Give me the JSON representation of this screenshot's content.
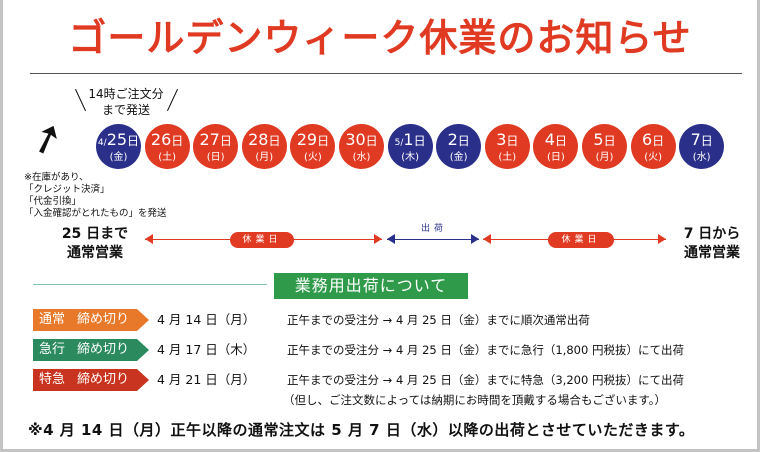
{
  "title": "ゴールデンウィーク休業のお知らせ",
  "note14": {
    "line1": "14時ご注文分",
    "line2": "まで発送"
  },
  "days": [
    {
      "month": "4/",
      "day": "25",
      "unit": "日",
      "weekday": "(金)",
      "type": "ship"
    },
    {
      "month": "",
      "day": "26",
      "unit": "日",
      "weekday": "(土)",
      "type": "holiday"
    },
    {
      "month": "",
      "day": "27",
      "unit": "日",
      "weekday": "(日)",
      "type": "holiday"
    },
    {
      "month": "",
      "day": "28",
      "unit": "日",
      "weekday": "(月)",
      "type": "holiday"
    },
    {
      "month": "",
      "day": "29",
      "unit": "日",
      "weekday": "(火)",
      "type": "holiday"
    },
    {
      "month": "",
      "day": "30",
      "unit": "日",
      "weekday": "(水)",
      "type": "holiday"
    },
    {
      "month": "5/",
      "day": "1",
      "unit": "日",
      "weekday": "(木)",
      "type": "ship"
    },
    {
      "month": "",
      "day": "2",
      "unit": "日",
      "weekday": "(金)",
      "type": "ship"
    },
    {
      "month": "",
      "day": "3",
      "unit": "日",
      "weekday": "(土)",
      "type": "holiday"
    },
    {
      "month": "",
      "day": "4",
      "unit": "日",
      "weekday": "(日)",
      "type": "holiday"
    },
    {
      "month": "",
      "day": "5",
      "unit": "日",
      "weekday": "(月)",
      "type": "holiday"
    },
    {
      "month": "",
      "day": "6",
      "unit": "日",
      "weekday": "(火)",
      "type": "holiday"
    },
    {
      "month": "",
      "day": "7",
      "unit": "日",
      "weekday": "(水)",
      "type": "ship"
    }
  ],
  "stock_note": [
    "※在庫があり、",
    "「クレジット決済」",
    "「代金引換」",
    "「入金確認がとれたもの」を発送"
  ],
  "left_side": {
    "line1": "25 日まで",
    "line2": "通常営業"
  },
  "right_side": {
    "line1": "7 日から",
    "line2": "通常営業"
  },
  "lanes": {
    "holiday1": "休業日",
    "ship": "出荷",
    "holiday2": "休業日"
  },
  "section_title": "業務用出荷について",
  "rows": [
    {
      "kind": "通常",
      "label": "締め切り",
      "date": "4 月 14 日（月）",
      "desc": "正午までの受注分 → 4 月 25 日（金）までに順次通常出荷",
      "color": "#e8792a"
    },
    {
      "kind": "急行",
      "label": "締め切り",
      "date": "4 月 17 日（木）",
      "desc": "正午までの受注分 → 4 月 25 日（金）までに急行（1,800 円税抜）にて出荷",
      "color": "#2b8a5e"
    },
    {
      "kind": "特急",
      "label": "締め切り",
      "date": "4 月 21 日（月）",
      "desc": "正午までの受注分 → 4 月 25 日（金）までに特急（3,200 円税抜）にて出荷",
      "color": "#c8341f"
    }
  ],
  "sub_note": "（但し、ご注文数によっては納期にお時間を頂戴する場合もございます。）",
  "footer": "※4 月 14 日（月）正午以降の通常注文は 5 月 7 日（水）以降の出荷とさせていただきます。",
  "colors": {
    "holiday": "#e03a22",
    "ship": "#2a2f8a"
  }
}
